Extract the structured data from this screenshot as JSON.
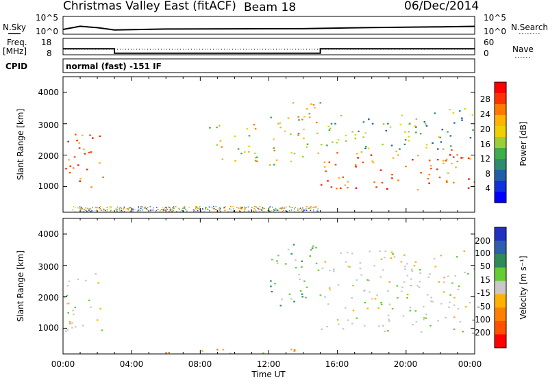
{
  "header": {
    "title": "Christmas Valley East (fitACF)",
    "beam": "Beam 18",
    "date": "06/Dec/2014"
  },
  "nsky_panel": {
    "label": "N.Sky",
    "right_label": "N.Search",
    "left_ticks": [
      "10^5",
      "10^0"
    ],
    "right_ticks": [
      "10^5",
      "10^0"
    ]
  },
  "freq_panel": {
    "label_line1": "Freq.",
    "label_line2": "[MHz]",
    "left_ticks": [
      "18",
      "8"
    ],
    "right_ticks": [
      "60",
      "0"
    ],
    "right_label": "Nave"
  },
  "cpid_panel": {
    "label": "CPID",
    "text": "normal (fast) -151 IF"
  },
  "axes": {
    "ylabel": "Slant Range [km]",
    "xlabel": "Time UT",
    "yticks": [
      "4000",
      "3000",
      "2000",
      "1000"
    ],
    "xticks": [
      "00:00",
      "04:00",
      "08:00",
      "12:00",
      "16:00",
      "20:00",
      "00:00"
    ]
  },
  "power_colorbar": {
    "label": "Power [dB]",
    "ticks": [
      "28",
      "24",
      "20",
      "16",
      "12",
      "8",
      "4"
    ],
    "colors": [
      "#ff0000",
      "#ff3300",
      "#ff7a00",
      "#ffb400",
      "#f0d000",
      "#9bcf3a",
      "#3fae4a",
      "#2e8b6e",
      "#1f5fa8",
      "#1030e0",
      "#0000ff"
    ]
  },
  "velocity_colorbar": {
    "label": "Velocity [m s⁻¹]",
    "ticks": [
      "200",
      "100",
      "50",
      "15",
      "-15",
      "-50",
      "-100",
      "-200"
    ],
    "colors": [
      "#2030c0",
      "#2d5fae",
      "#2e8b57",
      "#66cc33",
      "#c8c8c8",
      "#ffb000",
      "#ff8000",
      "#ff5000",
      "#ff0000"
    ]
  },
  "chart_data": {
    "type": "heatmap",
    "x_range_hours": [
      0,
      24
    ],
    "y_range_km": [
      180,
      4500
    ],
    "nsky_level_log": [
      [
        0,
        1.5
      ],
      [
        1,
        2.1
      ],
      [
        2,
        1.9
      ],
      [
        3,
        1.3
      ],
      [
        6,
        1.4
      ],
      [
        10,
        1.5
      ],
      [
        14,
        1.6
      ],
      [
        18,
        1.8
      ],
      [
        22,
        2.0
      ],
      [
        24,
        2.2
      ]
    ],
    "freq_mhz_segments": [
      [
        0,
        3,
        12
      ],
      [
        3,
        15,
        9
      ],
      [
        15,
        24,
        12
      ]
    ],
    "power_regions": [
      {
        "t0": 0.0,
        "t1": 2.3,
        "r0": 900,
        "r1": 2800,
        "level": "high"
      },
      {
        "t0": 8.5,
        "t1": 11.5,
        "r0": 1800,
        "r1": 3000,
        "level": "mid"
      },
      {
        "t0": 12.0,
        "t1": 15.0,
        "r0": 1700,
        "r1": 3700,
        "level": "mid"
      },
      {
        "t0": 15.0,
        "t1": 24.0,
        "r0": 900,
        "r1": 2200,
        "level": "high"
      },
      {
        "t0": 15.0,
        "t1": 24.0,
        "r0": 2200,
        "r1": 3500,
        "level": "low"
      }
    ],
    "velocity_regions": [
      {
        "t0": 0.0,
        "t1": 2.3,
        "r0": 900,
        "r1": 2800,
        "velocity": "near-zero"
      },
      {
        "t0": 12.0,
        "t1": 15.0,
        "r0": 1700,
        "r1": 3700,
        "velocity": "+15 to +50"
      },
      {
        "t0": 15.0,
        "t1": 24.0,
        "r0": 900,
        "r1": 3500,
        "velocity": "near-zero"
      },
      {
        "t0": 6.0,
        "t1": 15.0,
        "r0": 180,
        "r1": 350,
        "velocity": "-15 to -50"
      }
    ]
  }
}
